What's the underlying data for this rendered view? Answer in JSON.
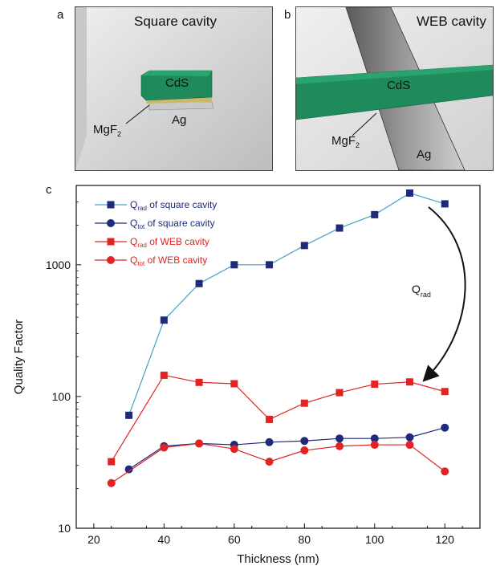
{
  "panels": {
    "a": {
      "letter": "a",
      "title": "Square cavity",
      "labels": {
        "cds": "CdS",
        "mgf": "MgF",
        "mgf_sub": "2",
        "ag": "Ag"
      }
    },
    "b": {
      "letter": "b",
      "title": "WEB cavity",
      "labels": {
        "cds": "CdS",
        "mgf": "MgF",
        "mgf_sub": "2",
        "ag": "Ag"
      }
    },
    "c": {
      "letter": "c"
    }
  },
  "colors": {
    "square": "#1f2a7a",
    "web": "#e02424",
    "square_rad_line": "#4a9fc8",
    "cds": "#1f8a5c"
  },
  "chart_data": {
    "type": "line",
    "xlabel": "Thickness (nm)",
    "ylabel": "Quality Factor",
    "xlim": [
      15,
      130
    ],
    "ylim": [
      10,
      4000
    ],
    "yscale": "log",
    "x_ticks": [
      20,
      40,
      60,
      80,
      100,
      120
    ],
    "y_ticks": [
      10,
      100,
      1000
    ],
    "legend_position": "top-left",
    "annotation": {
      "main": "Q",
      "sub": "rad"
    },
    "series": [
      {
        "name": "Q_rad of square cavity",
        "legend": {
          "q": "Q",
          "sub": "rad",
          "text": " of square cavity"
        },
        "marker": "square",
        "x": [
          30,
          40,
          50,
          60,
          70,
          80,
          90,
          100,
          110,
          120
        ],
        "values": [
          72,
          380,
          720,
          1000,
          1000,
          1400,
          1900,
          2400,
          3500,
          2900
        ]
      },
      {
        "name": "Q_tot of square cavity",
        "legend": {
          "q": "Q",
          "sub": "tot",
          "text": " of square cavity"
        },
        "marker": "circle",
        "x": [
          30,
          40,
          50,
          60,
          70,
          80,
          90,
          100,
          110,
          120
        ],
        "values": [
          28,
          42,
          44,
          43,
          45,
          46,
          48,
          48,
          49,
          58
        ]
      },
      {
        "name": "Q_rad of WEB cavity",
        "legend": {
          "q": "Q",
          "sub": "rad",
          "text": " of WEB cavity"
        },
        "marker": "square",
        "x": [
          25,
          40,
          50,
          60,
          70,
          80,
          90,
          100,
          110,
          120
        ],
        "values": [
          32,
          145,
          128,
          125,
          67,
          89,
          107,
          124,
          129,
          109
        ]
      },
      {
        "name": "Q_tot of WEB cavity",
        "legend": {
          "q": "Q",
          "sub": "tot",
          "text": " of WEB cavity"
        },
        "marker": "circle",
        "x": [
          25,
          40,
          50,
          60,
          70,
          80,
          90,
          100,
          110,
          120
        ],
        "values": [
          22,
          41,
          44,
          40,
          32,
          39,
          42,
          43,
          43,
          27
        ]
      }
    ]
  }
}
